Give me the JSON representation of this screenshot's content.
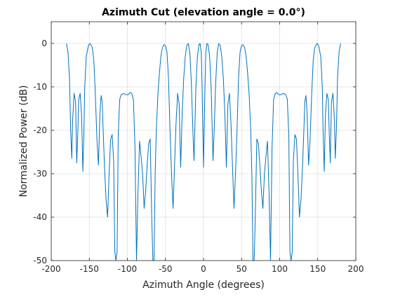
{
  "chart_data": {
    "type": "line",
    "title": "Azimuth Cut (elevation angle = 0.0°)",
    "xlabel": "Azimuth Angle (degrees)",
    "ylabel": "Normalized Power (dB)",
    "xlim": [
      -200,
      200
    ],
    "ylim": [
      -50,
      5
    ],
    "xticks": [
      -200,
      -150,
      -100,
      -50,
      0,
      50,
      100,
      150,
      200
    ],
    "yticks": [
      -50,
      -40,
      -30,
      -20,
      -10,
      0
    ],
    "grid": true,
    "line_color": "#0072BD",
    "series": [
      {
        "x": [
          -180,
          -178,
          -176,
          -174.5,
          -173,
          -172,
          -170,
          -168,
          -166.5,
          -165,
          -164,
          -162,
          -160,
          -158.5,
          -157,
          -156,
          -154,
          -151,
          -149,
          -146,
          -144,
          -142,
          -140,
          -138,
          -136,
          -134.5,
          -133,
          -132,
          -130,
          -128,
          -126,
          -124,
          -122,
          -120,
          -118,
          -116.5,
          -115,
          -113.5,
          -112,
          -110,
          -108,
          -105,
          -102,
          -99,
          -96,
          -94,
          -92,
          -90,
          -88,
          -86,
          -84,
          -82,
          -80,
          -78,
          -76,
          -74,
          -72,
          -70,
          -68,
          -66.5,
          -65,
          -63.5,
          -62,
          -60,
          -58,
          -56,
          -54,
          -52,
          -50,
          -48,
          -46,
          -44,
          -42,
          -40,
          -38,
          -36,
          -34,
          -32,
          -30,
          -28,
          -26,
          -24,
          -22,
          -20,
          -18,
          -16,
          -14,
          -12.5,
          -11,
          -10,
          -8,
          -6,
          -4.5,
          -3,
          -2,
          0,
          2,
          3,
          4.5,
          6,
          8,
          10,
          11,
          12.5,
          14,
          16,
          18,
          20,
          22,
          24,
          26,
          28,
          30,
          32,
          34,
          36,
          38,
          40,
          42,
          44,
          46,
          48,
          50,
          52,
          54,
          56,
          58,
          60,
          62,
          63.5,
          65,
          66.5,
          68,
          70,
          72,
          74,
          76,
          78,
          80,
          82,
          84,
          86,
          88,
          90,
          92,
          94,
          96,
          99,
          102,
          105,
          108,
          110,
          112,
          113.5,
          115,
          116.5,
          118,
          120,
          122,
          124,
          126,
          128,
          130,
          132,
          133,
          134.5,
          136,
          138,
          140,
          142,
          144,
          146,
          149,
          151,
          154,
          156,
          157,
          158.5,
          160,
          162,
          164,
          165,
          166.5,
          168,
          170,
          172,
          173,
          174.5,
          176,
          178,
          180
        ],
        "y": [
          0,
          -2,
          -8,
          -20,
          -26.5,
          -18,
          -11.5,
          -13.5,
          -27.5,
          -20,
          -13,
          -11.5,
          -17,
          -29.5,
          -20,
          -10,
          -3,
          -0.4,
          0,
          -1,
          -4,
          -12,
          -22,
          -28,
          -16,
          -12,
          -13.5,
          -19,
          -28.5,
          -36,
          -40,
          -30,
          -22,
          -21,
          -27,
          -48,
          -50,
          -48,
          -21,
          -12.8,
          -11.8,
          -11.5,
          -11.8,
          -11.8,
          -11.3,
          -11.6,
          -13,
          -24,
          -50,
          -34,
          -22.5,
          -26,
          -30,
          -38,
          -34,
          -28,
          -23,
          -22,
          -40,
          -50,
          -50,
          -30,
          -20,
          -12,
          -7,
          -3,
          -1,
          -0.3,
          -0.5,
          -2,
          -8,
          -20,
          -30,
          -38,
          -28,
          -18,
          -11.5,
          -14,
          -28.5,
          -16,
          -8,
          -3,
          -0.5,
          0,
          -2,
          -9,
          -20,
          -27,
          -17,
          -10,
          -3,
          -0.3,
          0,
          -2,
          -9,
          -28.5,
          -9,
          -2,
          0,
          -0.3,
          -3,
          -10,
          -17,
          -27,
          -20,
          -9,
          -2,
          0,
          -0.5,
          -3,
          -8,
          -16,
          -28.5,
          -14,
          -11.5,
          -18,
          -28,
          -38,
          -30,
          -20,
          -8,
          -2,
          -0.5,
          -0.3,
          -1,
          -3,
          -7,
          -12,
          -20,
          -30,
          -50,
          -50,
          -40,
          -22,
          -23,
          -28,
          -34,
          -38,
          -30,
          -26,
          -22.5,
          -34,
          -50,
          -24,
          -13,
          -11.6,
          -11.3,
          -11.8,
          -11.8,
          -11.5,
          -11.8,
          -12.8,
          -21,
          -48,
          -50,
          -48,
          -27,
          -21,
          -22,
          -30,
          -40,
          -36,
          -28.5,
          -19,
          -13.5,
          -12,
          -16,
          -28,
          -22,
          -12,
          -4,
          -1,
          0,
          -0.4,
          -3,
          -10,
          -20,
          -29.5,
          -17,
          -11.5,
          -13,
          -20,
          -27.5,
          -13.5,
          -11.5,
          -18,
          -26.5,
          -20,
          -8,
          -2,
          0
        ]
      }
    ]
  }
}
